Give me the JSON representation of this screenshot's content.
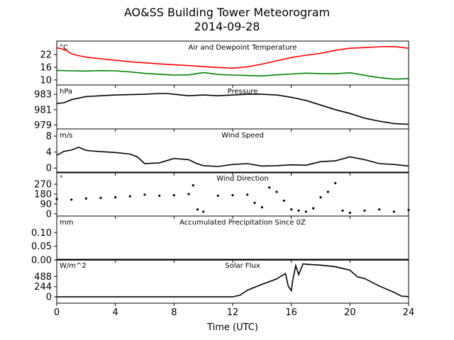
{
  "title": "AO&SS Building Tower Meteorogram",
  "subtitle": "2014-09-28",
  "xlabel": "Time (UTC)",
  "chart_data": {
    "type": "line",
    "x_axis": {
      "label": "Time (UTC)",
      "range": [
        0,
        24
      ],
      "ticks": [
        0,
        4,
        8,
        12,
        16,
        20,
        24
      ]
    },
    "panels": [
      {
        "id": "temp",
        "title": "Air and Dewpoint Temperature",
        "unit": "°C",
        "ylim": [
          7.6,
          28.4
        ],
        "yticks": [
          10,
          16,
          22
        ],
        "series": [
          {
            "color": "#ff0000",
            "style": "line",
            "x": [
              0,
              0.3,
              0.7,
              1,
              1.5,
              2,
              3,
              4,
              5,
              6,
              7,
              8,
              9,
              10,
              11,
              12,
              13,
              14,
              15,
              16,
              17,
              18,
              19,
              20,
              21,
              22,
              23,
              24
            ],
            "y": [
              25.2,
              24.8,
              23.8,
              22.4,
              21.5,
              20.8,
              20.0,
              19.3,
              18.6,
              18.1,
              17.6,
              17.2,
              16.8,
              16.3,
              15.9,
              15.6,
              16.2,
              17.5,
              19.0,
              20.6,
              21.7,
              22.6,
              24.0,
              25.0,
              25.3,
              25.7,
              25.8,
              25.0
            ]
          },
          {
            "color": "#008000",
            "style": "line",
            "x": [
              0,
              1,
              2,
              3,
              4,
              5,
              6,
              7,
              8,
              9,
              10,
              11,
              12,
              13,
              14,
              15,
              16,
              17,
              18,
              19,
              20,
              21,
              22,
              23,
              24
            ],
            "y": [
              14.5,
              14.3,
              14.2,
              14.4,
              14.3,
              13.8,
              13.1,
              12.7,
              12.3,
              12.4,
              13.5,
              12.6,
              12.3,
              12.1,
              11.9,
              12.4,
              12.8,
              13.2,
              13.0,
              12.9,
              13.4,
              12.2,
              11.1,
              10.4,
              10.6
            ]
          }
        ]
      },
      {
        "id": "pressure",
        "title": "Pressure",
        "unit": "hPa",
        "ylim": [
          978.5,
          984.2
        ],
        "yticks": [
          979,
          981,
          983
        ],
        "series": [
          {
            "color": "#000000",
            "style": "line",
            "x": [
              0,
              0.5,
              1,
              2,
              3,
              4,
              5,
              6,
              7,
              7.5,
              8,
              9,
              10,
              11,
              12,
              13,
              14,
              15,
              16,
              17,
              18,
              19,
              20,
              21,
              22,
              23,
              24
            ],
            "y": [
              981.8,
              981.9,
              982.3,
              982.7,
              982.8,
              982.9,
              982.95,
              983.0,
              983.1,
              983.1,
              983.0,
              982.8,
              982.9,
              982.8,
              982.9,
              983.0,
              983.0,
              982.9,
              982.6,
              982.2,
              981.6,
              981.0,
              980.5,
              979.9,
              979.5,
              979.2,
              979.1
            ]
          }
        ]
      },
      {
        "id": "wind_speed",
        "title": "Wind Speed",
        "unit": "m/s",
        "ylim": [
          -1.2,
          9.8
        ],
        "yticks": [
          0,
          4,
          8
        ],
        "series": [
          {
            "color": "#000000",
            "style": "line",
            "x": [
              0,
              0.5,
              1,
              1.5,
              2,
              3,
              4,
              5,
              5.5,
              6,
              7,
              8,
              9,
              9.5,
              10,
              11,
              12,
              13,
              14,
              15,
              16,
              17,
              18,
              19,
              20,
              21,
              22,
              23,
              24
            ],
            "y": [
              3.2,
              4.2,
              4.5,
              5.2,
              4.4,
              4.1,
              3.9,
              3.5,
              2.8,
              1.1,
              1.3,
              2.4,
              2.1,
              1.2,
              0.6,
              0.4,
              0.9,
              1.1,
              0.5,
              0.6,
              0.8,
              0.7,
              1.6,
              1.8,
              2.8,
              2.1,
              1.1,
              0.9,
              0.5
            ]
          }
        ]
      },
      {
        "id": "wind_direction",
        "title": "Wind Direction",
        "unit": "°",
        "ylim": [
          -20,
          380
        ],
        "yticks": [
          0,
          90,
          180,
          270
        ],
        "series": [
          {
            "color": "#000000",
            "style": "dots",
            "x": [
              0,
              1,
              2,
              3,
              4,
              5,
              6,
              7,
              8,
              9,
              9.3,
              9.6,
              10,
              11,
              12,
              13,
              13.5,
              14,
              14.5,
              15,
              15.5,
              16,
              16.5,
              17,
              17.5,
              18,
              18.5,
              19,
              19.5,
              20,
              21,
              22,
              23,
              24
            ],
            "y": [
              135,
              130,
              140,
              145,
              150,
              160,
              175,
              165,
              170,
              180,
              260,
              40,
              20,
              165,
              170,
              175,
              100,
              60,
              240,
              200,
              120,
              40,
              30,
              20,
              50,
              150,
              200,
              280,
              30,
              10,
              30,
              40,
              20,
              35
            ]
          }
        ]
      },
      {
        "id": "precip",
        "title": "Accumulated Precipitation Since 0Z",
        "unit": "mm",
        "ylim": [
          0,
          0.16
        ],
        "yticks": [
          0.0,
          0.05,
          0.1
        ],
        "ytick_labels": [
          "0.00",
          "0.05",
          "0.10"
        ],
        "series": [
          {
            "color": "#000000",
            "style": "line",
            "x": [
              0,
              24
            ],
            "y": [
              0,
              0
            ]
          }
        ]
      },
      {
        "id": "solar",
        "title": "Solar Flux",
        "unit": "W/m^2",
        "ylim": [
          -150,
          900
        ],
        "yticks": [
          0,
          244,
          488
        ],
        "series": [
          {
            "color": "#000000",
            "style": "line",
            "x": [
              0,
              6,
              12,
              12.5,
              13,
              14,
              15,
              15.6,
              15.8,
              16,
              16.1,
              16.3,
              16.5,
              16.8,
              17,
              18,
              19,
              20,
              20.5,
              21,
              22,
              23,
              23.5,
              24
            ],
            "y": [
              0,
              0,
              0,
              40,
              160,
              300,
              430,
              560,
              250,
              150,
              400,
              750,
              530,
              790,
              780,
              760,
              720,
              640,
              480,
              440,
              260,
              110,
              20,
              5
            ]
          }
        ]
      }
    ]
  }
}
